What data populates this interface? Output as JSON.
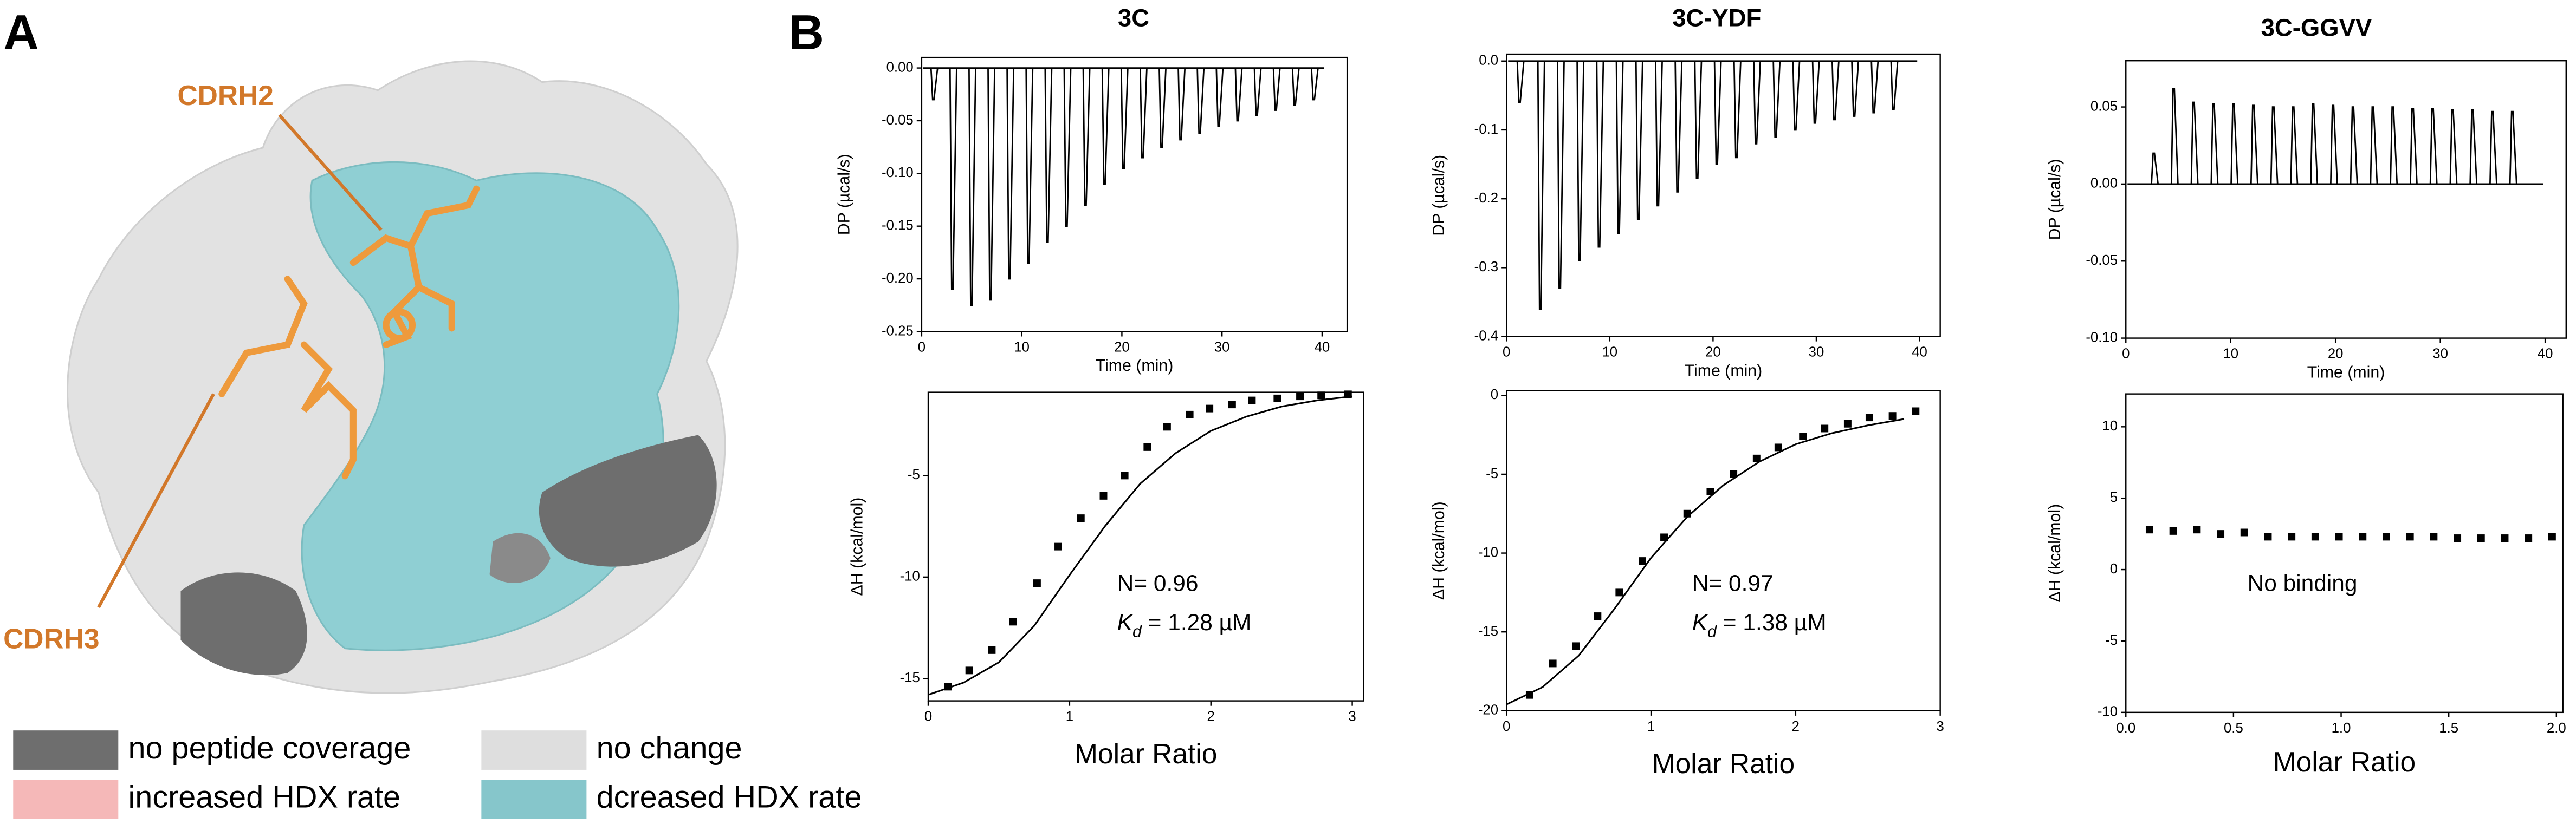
{
  "panel_labels": [
    "A",
    "B"
  ],
  "structure_labels": [
    "CDRH2",
    "CDRH3"
  ],
  "legend": [
    {
      "label": "no peptide coverage",
      "color": "#6e6e6e"
    },
    {
      "label": "no change",
      "color": "#dedede"
    },
    {
      "label": "increased HDX rate",
      "color": "#f5b8b8"
    },
    {
      "label": "dcreased HDX rate",
      "color": "#86c6cb"
    }
  ],
  "chart_data": [
    {
      "type": "spike",
      "title": "3C",
      "x_label": "Time (min)",
      "y_label": "DP (µcal/s)",
      "color": "#000000",
      "x": [
        1.1,
        3.0,
        4.9,
        6.8,
        8.7,
        10.6,
        12.5,
        14.4,
        16.3,
        18.2,
        20.1,
        22.0,
        23.9,
        25.8,
        27.7,
        29.6,
        31.5,
        33.4,
        35.3,
        37.2,
        39.1
      ],
      "values": [
        -0.03,
        -0.21,
        -0.225,
        -0.22,
        -0.2,
        -0.185,
        -0.165,
        -0.15,
        -0.13,
        -0.11,
        -0.095,
        -0.085,
        -0.075,
        -0.068,
        -0.062,
        -0.055,
        -0.05,
        -0.045,
        -0.04,
        -0.035,
        -0.03
      ],
      "xlim": [
        0,
        42.5
      ],
      "ylim": [
        -0.25,
        0.01
      ],
      "xticks": [
        0,
        10,
        20,
        30,
        40
      ],
      "yticks": [
        {
          "value": -0.25,
          "label": "-0.25"
        },
        {
          "value": -0.2,
          "label": "-0.20"
        },
        -0.15,
        {
          "value": -0.1,
          "label": "-0.10"
        },
        -0.05,
        {
          "value": 0,
          "label": "0.00"
        }
      ]
    },
    {
      "type": "scatter",
      "x_label": "Molar Ratio",
      "y_label": "ΔH (kcal/mol)",
      "color": "#000000",
      "x": [
        0.14,
        0.29,
        0.45,
        0.6,
        0.77,
        0.92,
        1.08,
        1.24,
        1.39,
        1.55,
        1.69,
        1.85,
        1.99,
        2.15,
        2.29,
        2.47,
        2.63,
        2.78,
        2.97
      ],
      "values": [
        -15.4,
        -14.6,
        -13.6,
        -12.2,
        -10.3,
        -8.5,
        -7.1,
        -6.0,
        -5.0,
        -3.6,
        -2.6,
        -2.0,
        -1.7,
        -1.5,
        -1.3,
        -1.2,
        -1.1,
        -1.05,
        -1.0
      ],
      "fit": {
        "x": [
          0,
          0.25,
          0.5,
          0.75,
          1.0,
          1.25,
          1.5,
          1.75,
          2.0,
          2.25,
          2.5,
          2.75,
          3.0
        ],
        "values": [
          -15.8,
          -15.2,
          -14.2,
          -12.4,
          -9.9,
          -7.5,
          -5.4,
          -3.9,
          -2.8,
          -2.1,
          -1.6,
          -1.3,
          -1.1
        ]
      },
      "annotation_lines": [
        [
          "N= 0.96"
        ],
        [
          "K",
          "d",
          " = 1.28 µM"
        ]
      ],
      "xlim": [
        0,
        3.08
      ],
      "ylim": [
        -16.1,
        -0.9
      ],
      "xticks": [
        0,
        1,
        2,
        3
      ],
      "yticks": [
        -15,
        -10,
        -5
      ]
    },
    {
      "type": "spike",
      "title": "3C-YDF",
      "x_label": "Time (min)",
      "y_label": "DP (µcal/s)",
      "color": "#000000",
      "x": [
        1.2,
        3.2,
        5.1,
        7.0,
        8.9,
        10.8,
        12.7,
        14.6,
        16.5,
        18.4,
        20.3,
        22.2,
        24.1,
        26.0,
        27.9,
        29.8,
        31.7,
        33.6,
        35.5,
        37.4
      ],
      "values": [
        -0.06,
        -0.36,
        -0.33,
        -0.29,
        -0.27,
        -0.25,
        -0.23,
        -0.21,
        -0.19,
        -0.17,
        -0.15,
        -0.14,
        -0.12,
        -0.11,
        -0.1,
        -0.09,
        -0.085,
        -0.08,
        -0.075,
        -0.07
      ],
      "xlim": [
        0,
        42
      ],
      "ylim": [
        -0.4,
        0.01
      ],
      "xticks": [
        0,
        10,
        20,
        30,
        40
      ],
      "yticks": [
        -0.4,
        -0.3,
        -0.2,
        -0.1,
        {
          "value": 0,
          "label": "0.0"
        }
      ]
    },
    {
      "type": "scatter",
      "x_label": "Molar Ratio",
      "y_label": "ΔH (kcal/mol)",
      "color": "#000000",
      "x": [
        0.16,
        0.32,
        0.48,
        0.63,
        0.78,
        0.94,
        1.09,
        1.25,
        1.41,
        1.57,
        1.73,
        1.88,
        2.05,
        2.2,
        2.36,
        2.51,
        2.67,
        2.83
      ],
      "values": [
        -19.0,
        -17.0,
        -15.9,
        -14.0,
        -12.5,
        -10.5,
        -9.0,
        -7.5,
        -6.1,
        -5.0,
        -4.0,
        -3.3,
        -2.6,
        -2.1,
        -1.8,
        -1.4,
        -1.3,
        -1.0
      ],
      "fit": {
        "x": [
          0,
          0.25,
          0.5,
          0.75,
          1.0,
          1.25,
          1.5,
          1.75,
          2.0,
          2.25,
          2.5,
          2.75
        ],
        "values": [
          -19.6,
          -18.5,
          -16.5,
          -13.5,
          -10.3,
          -7.7,
          -5.7,
          -4.2,
          -3.1,
          -2.4,
          -1.9,
          -1.5
        ]
      },
      "annotation_lines": [
        [
          "N= 0.97"
        ],
        [
          "K",
          "d",
          " = 1.38 µM"
        ]
      ],
      "xlim": [
        0,
        3
      ],
      "ylim": [
        -20,
        0.3
      ],
      "xticks": [
        0,
        1,
        2,
        3
      ],
      "yticks": [
        -20,
        -15,
        -10,
        -5,
        0
      ]
    },
    {
      "type": "spike",
      "title": "3C-GGVV",
      "x_label": "Time (min)",
      "y_label": "DP (µcal/s)",
      "color": "#000000",
      "x": [
        2.6,
        4.5,
        6.4,
        8.3,
        10.2,
        12.1,
        14.0,
        15.9,
        17.8,
        19.7,
        21.6,
        23.5,
        25.4,
        27.3,
        29.2,
        31.1,
        33.0,
        34.9,
        36.8
      ],
      "values": [
        0.02,
        0.062,
        0.053,
        0.052,
        0.052,
        0.051,
        0.05,
        0.05,
        0.052,
        0.051,
        0.05,
        0.05,
        0.05,
        0.049,
        0.049,
        0.048,
        0.048,
        0.047,
        0.047
      ],
      "xlim": [
        0,
        42
      ],
      "ylim": [
        -0.1,
        0.08
      ],
      "xticks": [
        0,
        10,
        20,
        30,
        40
      ],
      "yticks": [
        {
          "value": -0.1,
          "label": "-0.10"
        },
        -0.05,
        {
          "value": 0,
          "label": "0.00"
        },
        0.05
      ]
    },
    {
      "type": "scatter",
      "x_label": "Molar Ratio",
      "y_label": "ΔH (kcal/mol)",
      "color": "#000000",
      "x": [
        0.11,
        0.22,
        0.33,
        0.44,
        0.55,
        0.66,
        0.77,
        0.88,
        0.99,
        1.1,
        1.21,
        1.32,
        1.43,
        1.54,
        1.65,
        1.76,
        1.87,
        1.98
      ],
      "values": [
        2.8,
        2.7,
        2.8,
        2.5,
        2.6,
        2.3,
        2.3,
        2.3,
        2.3,
        2.3,
        2.3,
        2.3,
        2.3,
        2.2,
        2.2,
        2.2,
        2.2,
        2.3
      ],
      "annotation_lines": [
        [
          "No binding"
        ]
      ],
      "xlim": [
        0,
        2.03
      ],
      "ylim": [
        -10,
        12.3
      ],
      "xticks": [
        {
          "value": 0,
          "label": "0.0"
        },
        0.5,
        {
          "value": 1,
          "label": "1.0"
        },
        1.5,
        {
          "value": 2,
          "label": "2.0"
        }
      ],
      "yticks": [
        -10,
        -5,
        0,
        5,
        10
      ]
    }
  ]
}
